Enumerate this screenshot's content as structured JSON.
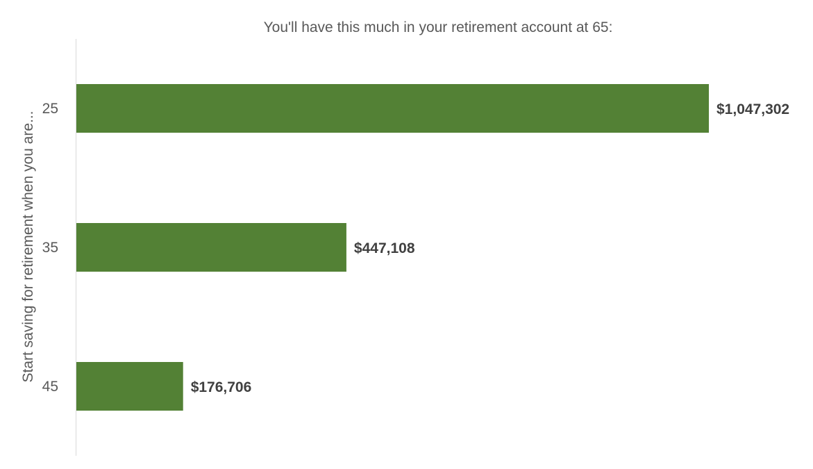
{
  "chart_data": {
    "type": "bar",
    "orientation": "horizontal",
    "title": "You'll have this much in your retirement account at 65:",
    "xlabel": "",
    "ylabel": "Start saving for retirement when you are...",
    "categories": [
      "25",
      "35",
      "45"
    ],
    "values": [
      1047302,
      447108,
      176706
    ],
    "data_labels": [
      "$1,047,302",
      "$447,108",
      "$176,706"
    ],
    "xlim": [
      0,
      1047302
    ],
    "grid": false,
    "legend": "none",
    "bar_color": "#538135"
  }
}
